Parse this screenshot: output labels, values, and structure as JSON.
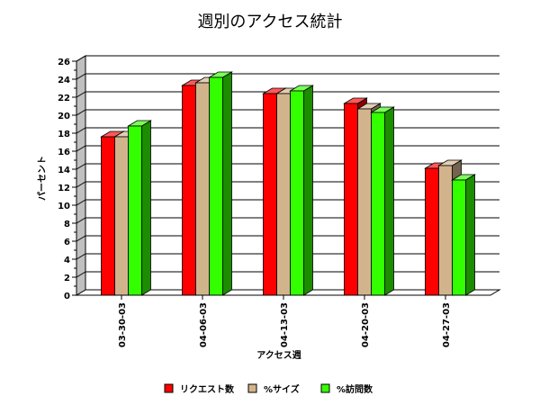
{
  "chart_data": {
    "type": "bar",
    "title": "週別のアクセス統計",
    "xlabel": "アクセス週",
    "ylabel": "パーセント",
    "categories": [
      "03-30-03",
      "04-06-03",
      "04-13-03",
      "04-20-03",
      "04-27-03"
    ],
    "series": [
      {
        "name": "リクエスト数",
        "values": [
          17.6,
          23.3,
          22.4,
          21.3,
          14.1
        ],
        "color": "#ff0000"
      },
      {
        "name": "%サイズ",
        "values": [
          17.6,
          23.6,
          22.4,
          20.7,
          14.4
        ],
        "color": "#d2b48c"
      },
      {
        "name": "%訪問数",
        "values": [
          18.8,
          24.2,
          22.7,
          20.3,
          12.8
        ],
        "color": "#33ff00"
      }
    ],
    "ylim": [
      0,
      26
    ],
    "yticks": [
      0,
      2,
      4,
      6,
      8,
      10,
      12,
      14,
      16,
      18,
      20,
      22,
      24,
      26
    ],
    "grid": true,
    "legend_position": "bottom",
    "three_d": true
  }
}
